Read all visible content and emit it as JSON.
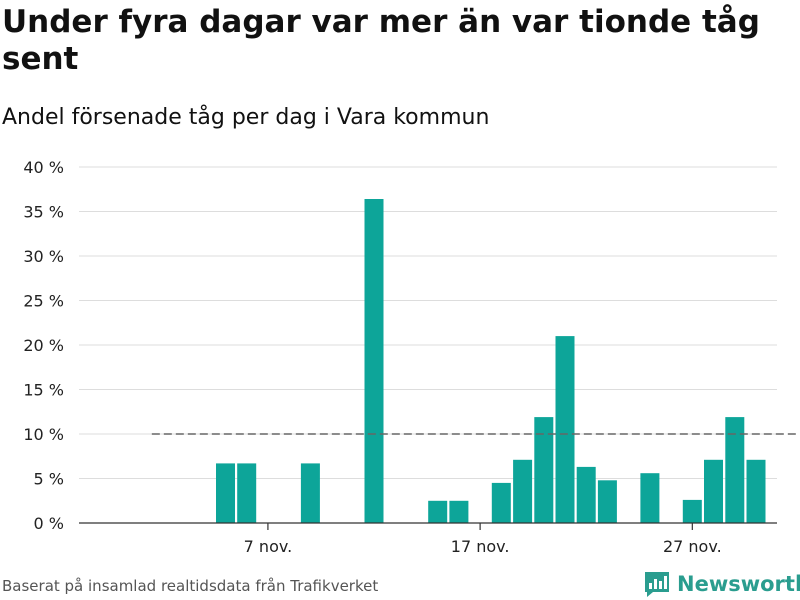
{
  "chart_data": {
    "type": "bar",
    "title": "Under fyra dagar var mer än var tionde tåg sent",
    "subtitle": "Andel försenade tåg per dag i Vara kommun",
    "xlabel": "",
    "ylabel": "",
    "x_day_range": [
      1,
      30
    ],
    "x_ticks": [
      {
        "day": 7,
        "label": "7 nov."
      },
      {
        "day": 17,
        "label": "17 nov."
      },
      {
        "day": 27,
        "label": "27 nov."
      }
    ],
    "y_ticks": [
      {
        "value": 0,
        "label": "0 %"
      },
      {
        "value": 5,
        "label": "5 %"
      },
      {
        "value": 10,
        "label": "10 %"
      },
      {
        "value": 15,
        "label": "15 %"
      },
      {
        "value": 20,
        "label": "20 %"
      },
      {
        "value": 25,
        "label": "25 %"
      },
      {
        "value": 30,
        "label": "30 %"
      },
      {
        "value": 35,
        "label": "35 %"
      },
      {
        "value": 40,
        "label": "40 %"
      }
    ],
    "ylim": [
      0,
      40
    ],
    "grid": true,
    "reference_line": {
      "value": 10,
      "style": "dashed",
      "from_day": 2,
      "to_day": 32
    },
    "bar_color": "#0da599",
    "series": [
      {
        "values": [
          {
            "day": 5,
            "value": 6.7
          },
          {
            "day": 6,
            "value": 6.7
          },
          {
            "day": 9,
            "value": 6.7
          },
          {
            "day": 12,
            "value": 36.4
          },
          {
            "day": 15,
            "value": 2.5
          },
          {
            "day": 16,
            "value": 2.5
          },
          {
            "day": 18,
            "value": 4.5
          },
          {
            "day": 19,
            "value": 7.1
          },
          {
            "day": 20,
            "value": 11.9
          },
          {
            "day": 21,
            "value": 21.0
          },
          {
            "day": 22,
            "value": 6.3
          },
          {
            "day": 23,
            "value": 4.8
          },
          {
            "day": 25,
            "value": 5.6
          },
          {
            "day": 27,
            "value": 2.6
          },
          {
            "day": 28,
            "value": 7.1
          },
          {
            "day": 29,
            "value": 11.9
          },
          {
            "day": 30,
            "value": 7.1
          }
        ]
      }
    ]
  },
  "footer": {
    "source": "Baserat på insamlad realtidsdata från Trafikverket",
    "brand": "Newsworthy",
    "brand_color": "#2a9d8f",
    "logo_icon": "bar-chart-speech-bubble-icon"
  }
}
